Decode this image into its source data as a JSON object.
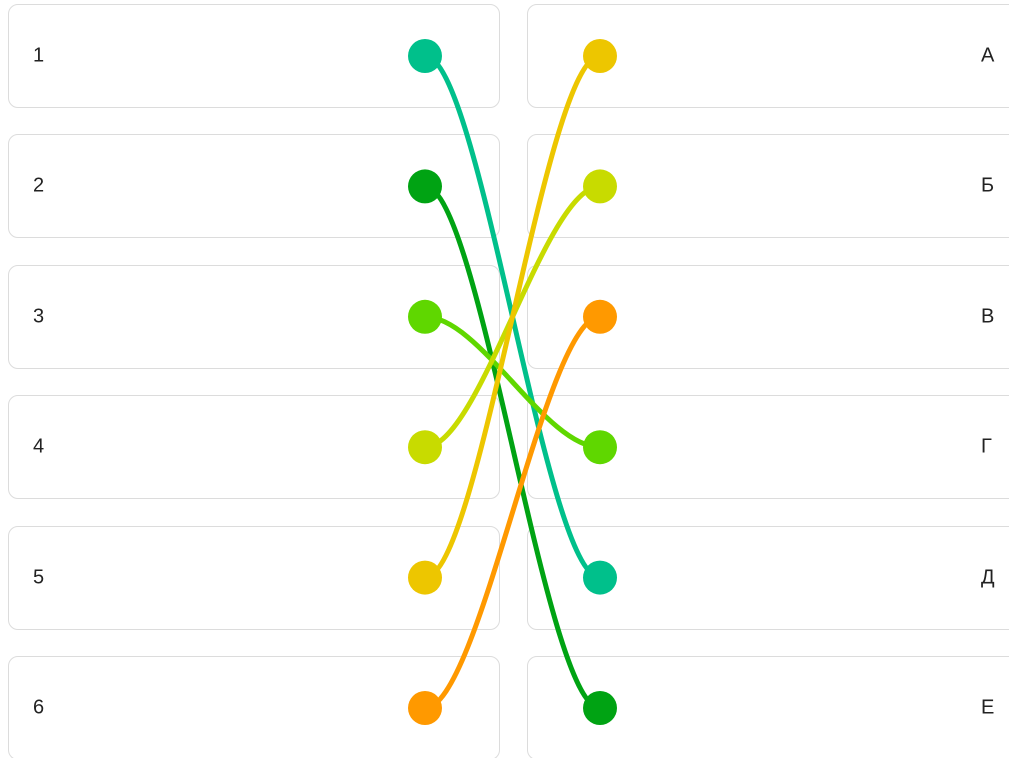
{
  "left_items": [
    {
      "label": "1",
      "color": "#00C08B"
    },
    {
      "label": "2",
      "color": "#00A313"
    },
    {
      "label": "3",
      "color": "#5FD700"
    },
    {
      "label": "4",
      "color": "#C8DB00"
    },
    {
      "label": "5",
      "color": "#EDC600"
    },
    {
      "label": "6",
      "color": "#FF9900"
    }
  ],
  "right_items": [
    {
      "label": "А",
      "color": "#EDC600"
    },
    {
      "label": "Б",
      "color": "#C8DB00"
    },
    {
      "label": "В",
      "color": "#FF9900"
    },
    {
      "label": "Г",
      "color": "#5FD700"
    },
    {
      "label": "Д",
      "color": "#00C08B"
    },
    {
      "label": "Е",
      "color": "#00A313"
    }
  ],
  "matches": [
    {
      "left": "1",
      "right": "Д"
    },
    {
      "left": "2",
      "right": "Е"
    },
    {
      "left": "3",
      "right": "Г"
    },
    {
      "left": "4",
      "right": "Б"
    },
    {
      "left": "5",
      "right": "А"
    },
    {
      "left": "6",
      "right": "В"
    }
  ]
}
